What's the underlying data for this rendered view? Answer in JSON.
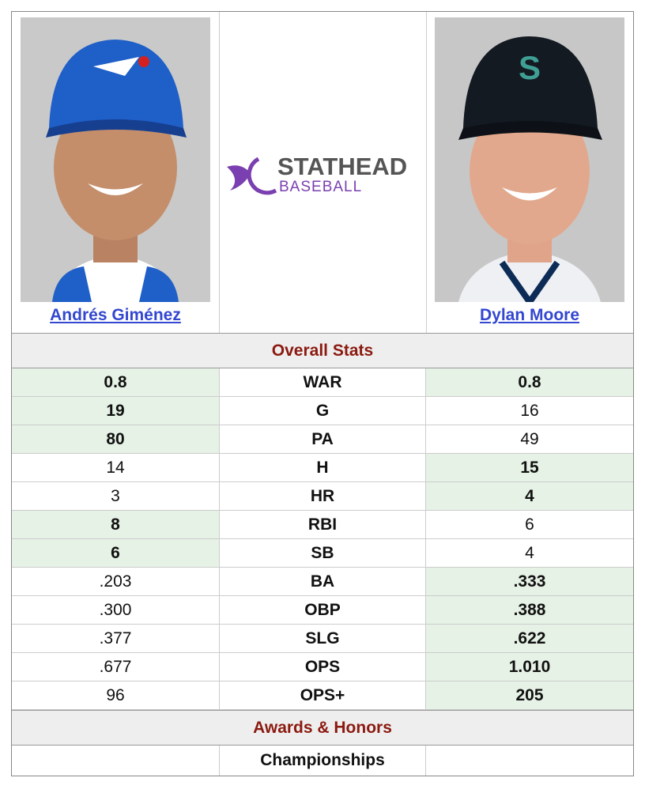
{
  "players": [
    {
      "name": "Andrés Giménez"
    },
    {
      "name": "Dylan Moore"
    }
  ],
  "logo": {
    "top": "STATHEAD",
    "bottom": "BASEBALL"
  },
  "sections": {
    "overall": "Overall Stats",
    "awards": "Awards & Honors",
    "championships": "Championships"
  },
  "rows": [
    {
      "stat": "WAR",
      "left": "0.8",
      "right": "0.8",
      "leader": "both"
    },
    {
      "stat": "G",
      "left": "19",
      "right": "16",
      "leader": "left"
    },
    {
      "stat": "PA",
      "left": "80",
      "right": "49",
      "leader": "left"
    },
    {
      "stat": "H",
      "left": "14",
      "right": "15",
      "leader": "right"
    },
    {
      "stat": "HR",
      "left": "3",
      "right": "4",
      "leader": "right"
    },
    {
      "stat": "RBI",
      "left": "8",
      "right": "6",
      "leader": "left"
    },
    {
      "stat": "SB",
      "left": "6",
      "right": "4",
      "leader": "left"
    },
    {
      "stat": "BA",
      "left": ".203",
      "right": ".333",
      "leader": "right"
    },
    {
      "stat": "OBP",
      "left": ".300",
      "right": ".388",
      "leader": "right"
    },
    {
      "stat": "SLG",
      "left": ".377",
      "right": ".622",
      "leader": "right"
    },
    {
      "stat": "OPS",
      "left": ".677",
      "right": "1.010",
      "leader": "right"
    },
    {
      "stat": "OPS+",
      "left": "96",
      "right": "205",
      "leader": "right"
    }
  ]
}
